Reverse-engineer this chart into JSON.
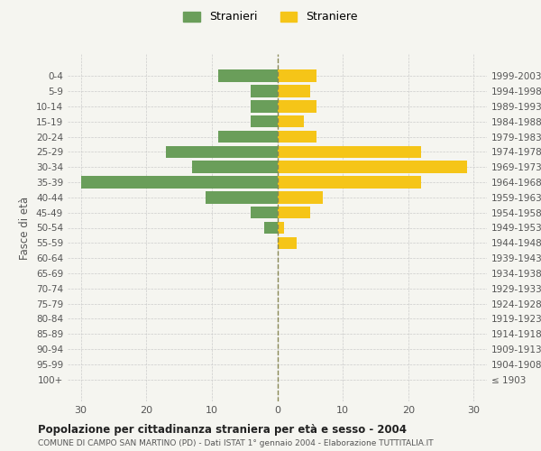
{
  "age_groups": [
    "100+",
    "95-99",
    "90-94",
    "85-89",
    "80-84",
    "75-79",
    "70-74",
    "65-69",
    "60-64",
    "55-59",
    "50-54",
    "45-49",
    "40-44",
    "35-39",
    "30-34",
    "25-29",
    "20-24",
    "15-19",
    "10-14",
    "5-9",
    "0-4"
  ],
  "birth_years": [
    "≤ 1903",
    "1904-1908",
    "1909-1913",
    "1914-1918",
    "1919-1923",
    "1924-1928",
    "1929-1933",
    "1934-1938",
    "1939-1943",
    "1944-1948",
    "1949-1953",
    "1954-1958",
    "1959-1963",
    "1964-1968",
    "1969-1973",
    "1974-1978",
    "1979-1983",
    "1984-1988",
    "1989-1993",
    "1994-1998",
    "1999-2003"
  ],
  "males": [
    0,
    0,
    0,
    0,
    0,
    0,
    0,
    0,
    0,
    0,
    2,
    4,
    11,
    30,
    13,
    17,
    9,
    4,
    4,
    4,
    9
  ],
  "females": [
    0,
    0,
    0,
    0,
    0,
    0,
    0,
    0,
    0,
    3,
    1,
    5,
    7,
    22,
    29,
    22,
    6,
    4,
    6,
    5,
    6
  ],
  "male_color": "#6a9e5a",
  "female_color": "#f5c518",
  "background_color": "#f5f5f0",
  "grid_color": "#cccccc",
  "title": "Popolazione per cittadinanza straniera per età e sesso - 2004",
  "subtitle": "COMUNE DI CAMPO SAN MARTINO (PD) - Dati ISTAT 1° gennaio 2004 - Elaborazione TUTTITALIA.IT",
  "ylabel_left": "Fasce di età",
  "xlim": 32,
  "legend_male": "Stranieri",
  "legend_female": "Straniere",
  "tick_color": "#555555",
  "bar_height": 0.8
}
